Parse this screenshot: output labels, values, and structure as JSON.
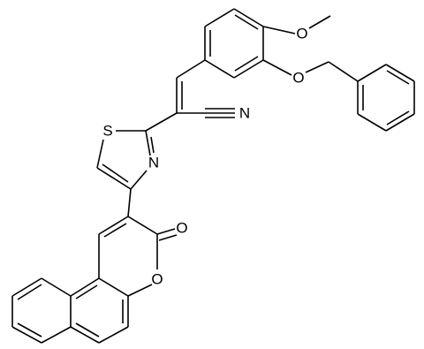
{
  "atoms": [
    {
      "label": "O"
    },
    {
      "label": "O"
    },
    {
      "label": "N"
    },
    {
      "label": "S"
    },
    {
      "label": "N"
    },
    {
      "label": "O"
    },
    {
      "label": "O"
    }
  ]
}
